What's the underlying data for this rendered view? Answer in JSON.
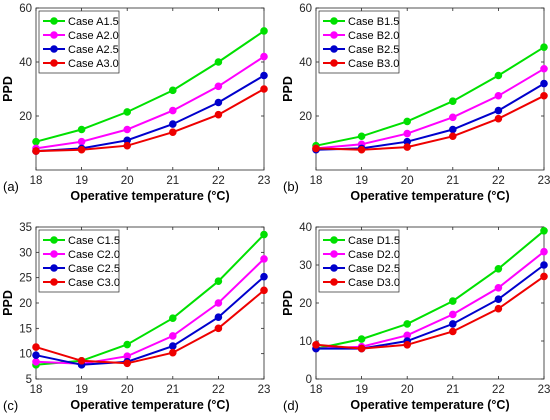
{
  "figure": {
    "colors": [
      "#00e000",
      "#ff00ff",
      "#0000cc",
      "#ee0000"
    ]
  },
  "chart_data": [
    {
      "type": "line",
      "panel_label": "(a)",
      "xlabel": "Operative temperature (°C)",
      "ylabel": "PPD",
      "x": [
        18,
        19,
        20,
        21,
        22,
        23
      ],
      "xlim": [
        18,
        23
      ],
      "ylim": [
        0,
        60
      ],
      "yticks": [
        20,
        40,
        60
      ],
      "legend_position": "top-left",
      "series": [
        {
          "name": "Case A1.5",
          "values": [
            10.5,
            15,
            21.5,
            29.5,
            40,
            51.5
          ]
        },
        {
          "name": "Case A2.0",
          "values": [
            8,
            10.5,
            15,
            22,
            31,
            42
          ]
        },
        {
          "name": "Case A2.5",
          "values": [
            7,
            8,
            11,
            17,
            25,
            35
          ]
        },
        {
          "name": "Case A3.0",
          "values": [
            7,
            7.5,
            9,
            14,
            20.5,
            30
          ]
        }
      ]
    },
    {
      "type": "line",
      "panel_label": "(b)",
      "xlabel": "Operative temperature (°C)",
      "ylabel": "PPD",
      "x": [
        18,
        19,
        20,
        21,
        22,
        23
      ],
      "xlim": [
        18,
        23
      ],
      "ylim": [
        0,
        60
      ],
      "yticks": [
        20,
        40,
        60
      ],
      "legend_position": "top-left",
      "series": [
        {
          "name": "Case B1.5",
          "values": [
            9,
            12.5,
            18,
            25.5,
            35,
            45.5
          ]
        },
        {
          "name": "Case B2.0",
          "values": [
            8,
            9.5,
            13.5,
            19.5,
            27.5,
            37.5
          ]
        },
        {
          "name": "Case B2.5",
          "values": [
            7.5,
            8,
            10.5,
            15,
            22,
            32
          ]
        },
        {
          "name": "Case B3.0",
          "values": [
            8,
            7.5,
            8.5,
            12.5,
            19,
            27.5
          ]
        }
      ]
    },
    {
      "type": "line",
      "panel_label": "(c)",
      "xlabel": "Operative temperature (°C)",
      "ylabel": "PPD",
      "x": [
        18,
        19,
        20,
        21,
        22,
        23
      ],
      "xlim": [
        18,
        23
      ],
      "ylim": [
        5,
        35
      ],
      "yticks": [
        5,
        10,
        15,
        20,
        25,
        30,
        35
      ],
      "legend_position": "top-left",
      "series": [
        {
          "name": "Case C1.5",
          "values": [
            7.8,
            8.6,
            11.8,
            17,
            24.3,
            33.5
          ]
        },
        {
          "name": "Case C2.0",
          "values": [
            8.4,
            8,
            9.5,
            13.5,
            20,
            28.7
          ]
        },
        {
          "name": "Case C2.5",
          "values": [
            9.7,
            7.8,
            8.4,
            11.5,
            17.2,
            25.2
          ]
        },
        {
          "name": "Case C3.0",
          "values": [
            11.3,
            8.6,
            8.1,
            10.2,
            15,
            22.5
          ]
        }
      ]
    },
    {
      "type": "line",
      "panel_label": "(d)",
      "xlabel": "Operative temperature (°C)",
      "ylabel": "PPD",
      "x": [
        18,
        19,
        20,
        21,
        22,
        23
      ],
      "xlim": [
        18,
        23
      ],
      "ylim": [
        0,
        40
      ],
      "yticks": [
        0,
        10,
        20,
        30,
        40
      ],
      "legend_position": "top-left",
      "series": [
        {
          "name": "Case D1.5",
          "values": [
            8,
            10.5,
            14.5,
            20.5,
            29,
            39
          ]
        },
        {
          "name": "Case D2.0",
          "values": [
            8,
            8.5,
            11.5,
            17,
            24,
            33.5
          ]
        },
        {
          "name": "Case D2.5",
          "values": [
            8,
            8,
            10,
            14.5,
            21,
            30
          ]
        },
        {
          "name": "Case D3.0",
          "values": [
            9,
            8,
            9,
            12.5,
            18.5,
            27
          ]
        }
      ]
    }
  ]
}
